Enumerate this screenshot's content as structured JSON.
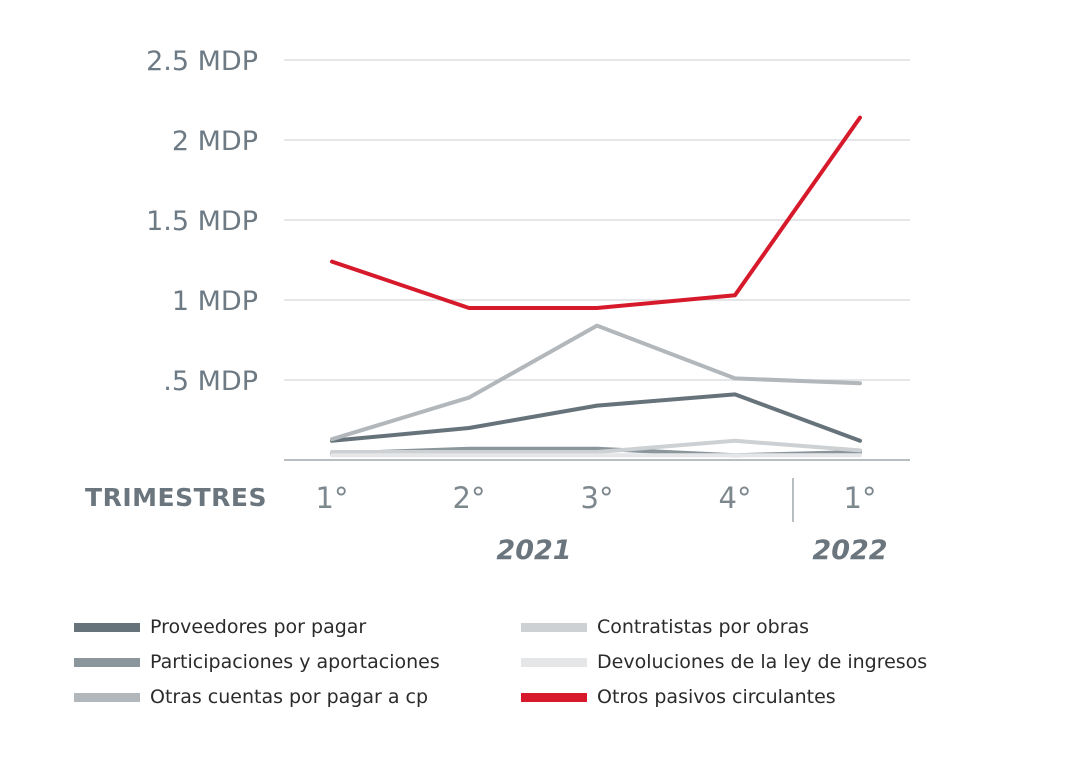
{
  "chart_data": {
    "type": "line",
    "xlabel": "TRIMESTRES",
    "categories": [
      "1°",
      "2°",
      "3°",
      "4°",
      "1°"
    ],
    "year_groups": [
      "2021",
      "2022"
    ],
    "y_ticks": [
      ".5 MDP",
      "1 MDP",
      "1.5 MDP",
      "2 MDP",
      "2.5 MDP"
    ],
    "ylim": [
      0,
      2.5
    ],
    "grid": true,
    "legend_position": "bottom",
    "series": [
      {
        "name": "Proveedores por pagar",
        "color": "#67737b",
        "values": [
          0.12,
          0.2,
          0.34,
          0.41,
          0.12
        ]
      },
      {
        "name": "Participaciones y aportaciones",
        "color": "#8a959c",
        "values": [
          0.04,
          0.07,
          0.07,
          0.03,
          0.05
        ]
      },
      {
        "name": "Otras cuentas por pagar a cp",
        "color": "#b2b7bb",
        "values": [
          0.13,
          0.39,
          0.84,
          0.51,
          0.48
        ]
      },
      {
        "name": "Contratistas por obras",
        "color": "#cdd1d3",
        "values": [
          0.05,
          0.05,
          0.05,
          0.12,
          0.06
        ]
      },
      {
        "name": "Devoluciones de la ley de ingresos",
        "color": "#e4e6e7",
        "values": [
          0.03,
          0.03,
          0.03,
          0.03,
          0.03
        ]
      },
      {
        "name": "Otros pasivos circulantes",
        "color": "#d71a2b",
        "values": [
          1.24,
          0.95,
          0.95,
          1.03,
          2.14
        ]
      }
    ]
  }
}
